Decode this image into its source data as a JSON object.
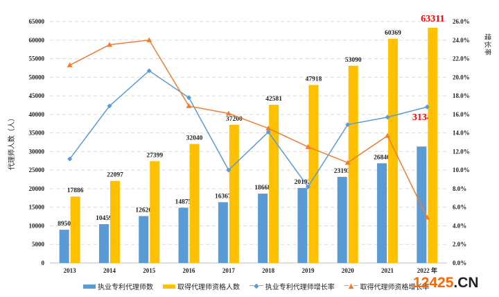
{
  "chart_data": {
    "type": "bar",
    "categories": [
      "2013",
      "2014",
      "2015",
      "2016",
      "2017",
      "2018",
      "2019",
      "2020",
      "2021",
      "2022 年"
    ],
    "ylabel": "代理师人数（人）",
    "y2label": "增长率",
    "ylim": [
      0,
      65000
    ],
    "yticks": [
      "0",
      "5000",
      "10000",
      "15000",
      "20000",
      "25000",
      "30000",
      "35000",
      "40000",
      "45000",
      "50000",
      "55000",
      "60000",
      "65000"
    ],
    "y2lim": [
      0,
      26
    ],
    "y2ticks": [
      "0.0%",
      "2.0%",
      "4.0%",
      "6.0%",
      "8.0%",
      "10.0%",
      "12.0%",
      "14.0%",
      "16.0%",
      "18.0%",
      "20.0%",
      "22.0%",
      "24.0%",
      "26.0%"
    ],
    "grid": true,
    "legend_position": "bottom",
    "series": [
      {
        "name": "执业专利代理师数",
        "type": "bar",
        "axis": "left",
        "color": "#5b9bd5",
        "values": [
          8950,
          10459,
          12626,
          14875,
          16367,
          18668,
          20192,
          23193,
          26840,
          31347
        ],
        "labels": [
          "8950",
          "10459",
          "12626",
          "14875",
          "16367",
          "18668",
          "20192",
          "23193",
          "26840",
          "31347"
        ]
      },
      {
        "name": "取得代理师资格人数",
        "type": "bar",
        "axis": "left",
        "color": "#ffc000",
        "values": [
          17886,
          22097,
          27399,
          32040,
          37200,
          42581,
          47918,
          53090,
          60369,
          63311
        ],
        "labels": [
          "17886",
          "22097",
          "27399",
          "32040",
          "37200",
          "42581",
          "47918",
          "53090",
          "60369",
          "63311"
        ]
      },
      {
        "name": "执业专利代理师增长率",
        "type": "line",
        "axis": "right",
        "color": "#5b9bd5",
        "marker": "diamond",
        "values": [
          11.2,
          16.9,
          20.7,
          17.8,
          10.0,
          14.1,
          8.2,
          14.9,
          15.7,
          16.8
        ]
      },
      {
        "name": "取得代理师资格增长率",
        "type": "line",
        "axis": "right",
        "color": "#ed7d31",
        "marker": "triangle",
        "values": [
          21.3,
          23.5,
          24.0,
          16.9,
          16.1,
          14.5,
          12.5,
          10.8,
          13.7,
          4.9
        ]
      }
    ],
    "highlight_color": "#ff0000"
  },
  "watermark": {
    "text_a": "12425",
    "text_b": ".CN",
    "color_a": "#ff6600",
    "color_b": "#222222"
  }
}
